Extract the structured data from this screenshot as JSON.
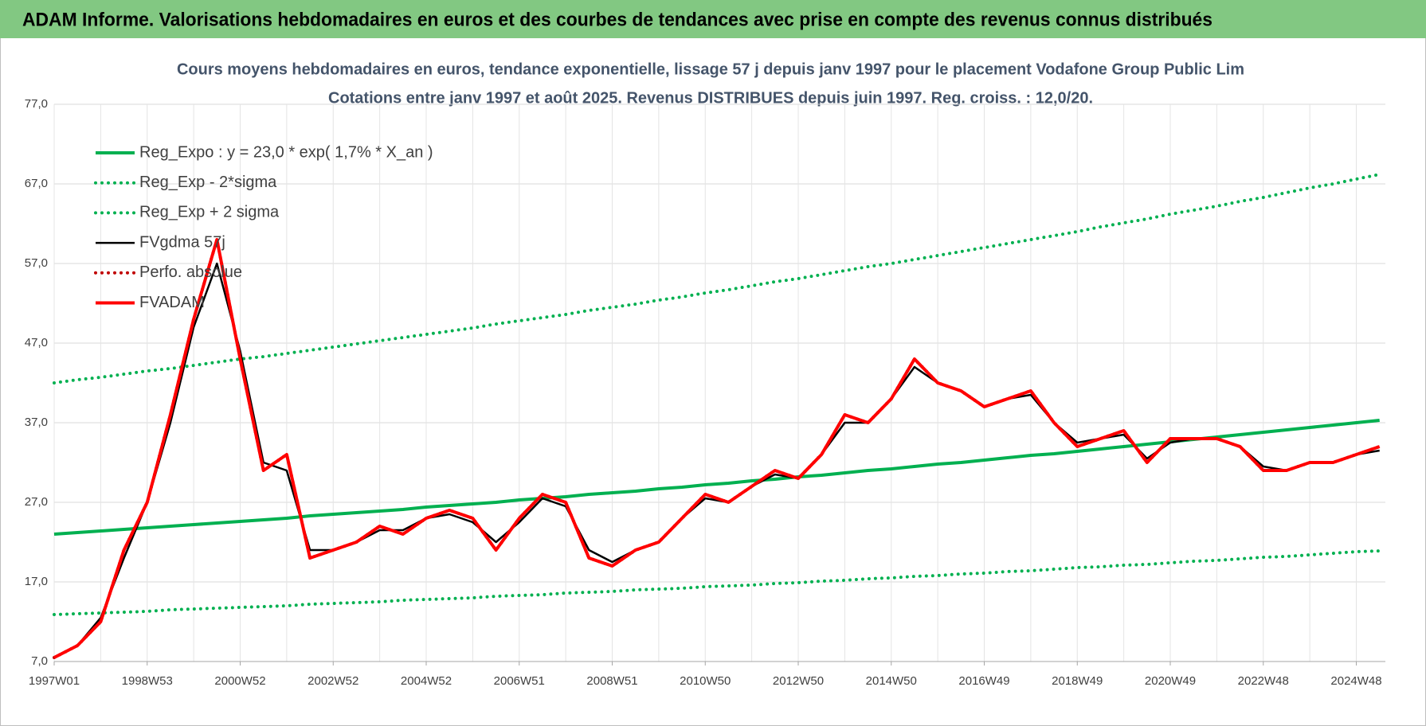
{
  "header": "ADAM Informe. Valorisations hebdomadaires en euros et des courbes de tendances avec prise en compte des revenus connus distribués",
  "chart_data": {
    "type": "line",
    "title": "Cours moyens hebdomadaires en euros, tendance exponentielle, lissage 57 j depuis janv 1997 pour le placement Vodafone Group Public Lim",
    "subtitle": "Cotations entre janv 1997 et août 2025. Revenus DISTRIBUES depuis juin 1997. Reg. croiss. : 12,0/20.",
    "categories": [
      "1997W01",
      null,
      null,
      null,
      "1998W53",
      null,
      null,
      null,
      "2000W52",
      null,
      null,
      null,
      "2002W52",
      null,
      null,
      null,
      "2004W52",
      null,
      null,
      null,
      "2006W51",
      null,
      null,
      null,
      "2008W51",
      null,
      null,
      null,
      "2010W50",
      null,
      null,
      null,
      "2012W50",
      null,
      null,
      null,
      "2014W50",
      null,
      null,
      null,
      "2016W49",
      null,
      null,
      null,
      "2018W49",
      null,
      null,
      null,
      "2020W49",
      null,
      null,
      null,
      "2022W48",
      null,
      null,
      null,
      "2024W48",
      null
    ],
    "ylim": [
      7,
      77
    ],
    "yticks": [
      {
        "value": 7,
        "label": "7,0"
      },
      {
        "value": 17,
        "label": "17,0"
      },
      {
        "value": 27,
        "label": "27,0"
      },
      {
        "value": 37,
        "label": "37,0"
      },
      {
        "value": 47,
        "label": "47,0"
      },
      {
        "value": 57,
        "label": "57,0"
      },
      {
        "value": 67,
        "label": "67,0"
      },
      {
        "value": 77,
        "label": "77,0"
      }
    ],
    "grid": true,
    "legend": "upper left",
    "series": [
      {
        "name": "Reg_Expo : y = 23,0 * exp( 1,7% *  X_an )",
        "color": "#00b050",
        "style": "solid",
        "values": [
          23.0,
          23.2,
          23.4,
          23.6,
          23.8,
          24.0,
          24.2,
          24.4,
          24.6,
          24.8,
          25.0,
          25.3,
          25.5,
          25.7,
          25.9,
          26.1,
          26.4,
          26.6,
          26.8,
          27.0,
          27.3,
          27.5,
          27.7,
          28.0,
          28.2,
          28.4,
          28.7,
          28.9,
          29.2,
          29.4,
          29.7,
          29.9,
          30.2,
          30.4,
          30.7,
          31.0,
          31.2,
          31.5,
          31.8,
          32.0,
          32.3,
          32.6,
          32.9,
          33.1,
          33.4,
          33.7,
          34.0,
          34.3,
          34.6,
          34.9,
          35.2,
          35.5,
          35.8,
          36.1,
          36.4,
          36.7,
          37.0,
          37.3
        ]
      },
      {
        "name": "Reg_Exp - 2*sigma",
        "color": "#00b050",
        "style": "dotted",
        "values": [
          12.9,
          13.0,
          13.1,
          13.2,
          13.3,
          13.5,
          13.6,
          13.7,
          13.8,
          13.9,
          14.0,
          14.2,
          14.3,
          14.4,
          14.5,
          14.7,
          14.8,
          14.9,
          15.0,
          15.2,
          15.3,
          15.4,
          15.6,
          15.7,
          15.8,
          16.0,
          16.1,
          16.2,
          16.4,
          16.5,
          16.6,
          16.8,
          16.9,
          17.1,
          17.2,
          17.4,
          17.5,
          17.7,
          17.8,
          18.0,
          18.1,
          18.3,
          18.4,
          18.6,
          18.8,
          18.9,
          19.1,
          19.2,
          19.4,
          19.6,
          19.7,
          19.9,
          20.1,
          20.2,
          20.4,
          20.6,
          20.8,
          20.9
        ]
      },
      {
        "name": "Reg_Exp + 2 sigma",
        "color": "#00b050",
        "style": "dotted",
        "values": [
          42.0,
          42.4,
          42.7,
          43.1,
          43.5,
          43.8,
          44.2,
          44.6,
          45.0,
          45.3,
          45.7,
          46.1,
          46.5,
          46.9,
          47.3,
          47.7,
          48.1,
          48.5,
          48.9,
          49.4,
          49.8,
          50.2,
          50.6,
          51.1,
          51.5,
          51.9,
          52.4,
          52.8,
          53.3,
          53.7,
          54.2,
          54.7,
          55.1,
          55.6,
          56.1,
          56.6,
          57.0,
          57.5,
          58.0,
          58.5,
          59.0,
          59.5,
          60.0,
          60.5,
          61.0,
          61.6,
          62.1,
          62.6,
          63.2,
          63.7,
          64.2,
          64.8,
          65.3,
          65.9,
          66.5,
          67.0,
          67.6,
          68.2
        ]
      },
      {
        "name": "FVgdma 57j",
        "color": "#000000",
        "style": "solid",
        "values": [
          7.5,
          9,
          12.5,
          20,
          27,
          37,
          49,
          57,
          46,
          32,
          31,
          21,
          21,
          22,
          23.5,
          23.5,
          25,
          25.5,
          24.5,
          22,
          24.5,
          27.5,
          26.5,
          21,
          19.5,
          21,
          22,
          25,
          27.5,
          27,
          29,
          30.5,
          30,
          33,
          37,
          37,
          40,
          44,
          42,
          41,
          39,
          40,
          40.5,
          37,
          34.5,
          35,
          35.5,
          32.5,
          34.5,
          35,
          35,
          34,
          31.5,
          31,
          32,
          32,
          33,
          33.5
        ]
      },
      {
        "name": "Perfo. absolue",
        "color": "#c00000",
        "style": "dotted",
        "values": [
          7.5,
          9,
          12,
          21,
          27,
          38,
          50,
          60,
          45,
          31,
          33,
          20,
          21,
          22,
          24,
          23,
          25,
          26,
          25,
          21,
          25,
          28,
          27,
          20,
          19,
          21,
          22,
          25,
          28,
          27,
          29,
          31,
          30,
          33,
          38,
          37,
          40,
          45,
          42,
          41,
          39,
          40,
          41,
          37,
          34,
          35,
          36,
          32,
          35,
          35,
          35,
          34,
          31,
          31,
          32,
          32,
          33,
          34
        ]
      },
      {
        "name": "FVADAM",
        "color": "#ff0000",
        "style": "solid",
        "values": [
          7.5,
          9,
          12,
          21,
          27,
          38,
          50,
          60,
          45,
          31,
          33,
          20,
          21,
          22,
          24,
          23,
          25,
          26,
          25,
          21,
          25,
          28,
          27,
          20,
          19,
          21,
          22,
          25,
          28,
          27,
          29,
          31,
          30,
          33,
          38,
          37,
          40,
          45,
          42,
          41,
          39,
          40,
          41,
          37,
          34,
          35,
          36,
          32,
          35,
          35,
          35,
          34,
          31,
          31,
          32,
          32,
          33,
          34
        ]
      }
    ]
  }
}
